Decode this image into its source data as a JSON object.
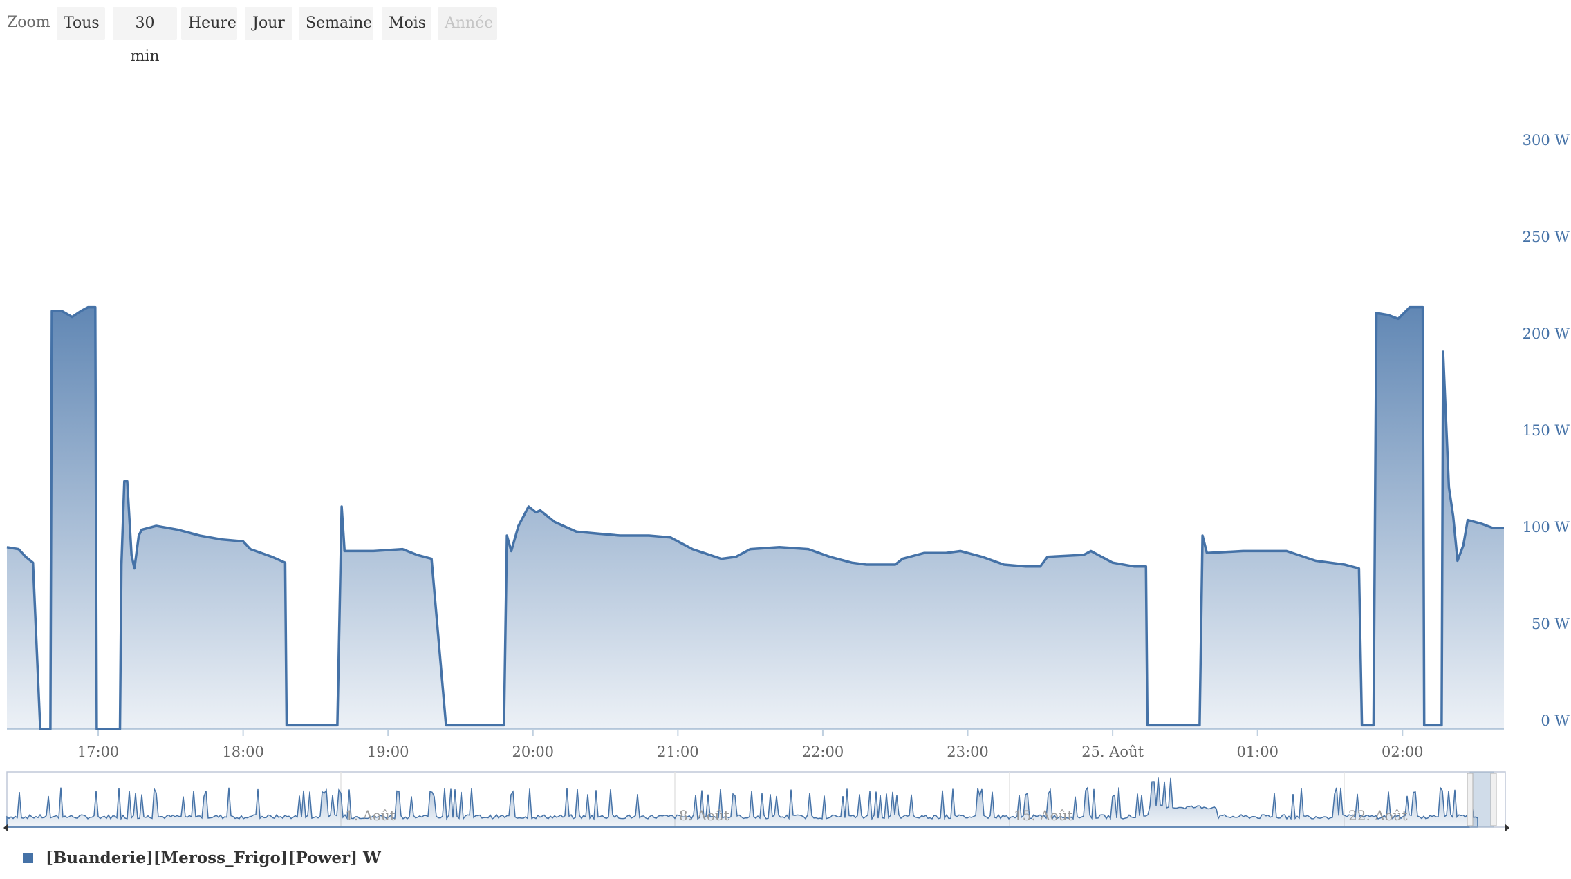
{
  "zoom": {
    "label": "Zoom",
    "buttons": [
      "Tous",
      "30 min",
      "Heure",
      "Jour",
      "Semaine",
      "Mois",
      "Année"
    ],
    "disabled": "Année"
  },
  "colors": {
    "series": "#4572a7",
    "axis_labels": "#4572a7",
    "grid_text": "#666666"
  },
  "chart_data": {
    "type": "area",
    "title": "",
    "series": [
      {
        "name": "[Buanderie][Meross_Frigo][Power] W",
        "unit": "W",
        "x_unit": "hours since 00:00 on 24 Aug (values past 24 are the next day)",
        "points": [
          [
            16.37,
            94
          ],
          [
            16.45,
            93
          ],
          [
            16.5,
            89
          ],
          [
            16.55,
            86
          ],
          [
            16.6,
            0
          ],
          [
            16.67,
            0
          ],
          [
            16.68,
            216
          ],
          [
            16.75,
            216
          ],
          [
            16.82,
            213
          ],
          [
            16.88,
            216
          ],
          [
            16.93,
            218
          ],
          [
            16.98,
            218
          ],
          [
            16.99,
            0
          ],
          [
            17.15,
            0
          ],
          [
            17.16,
            85
          ],
          [
            17.18,
            128
          ],
          [
            17.2,
            128
          ],
          [
            17.23,
            90
          ],
          [
            17.25,
            83
          ],
          [
            17.28,
            100
          ],
          [
            17.3,
            103
          ],
          [
            17.4,
            105
          ],
          [
            17.55,
            103
          ],
          [
            17.7,
            100
          ],
          [
            17.85,
            98
          ],
          [
            18.0,
            97
          ],
          [
            18.05,
            93
          ],
          [
            18.2,
            89
          ],
          [
            18.29,
            86
          ],
          [
            18.3,
            2
          ],
          [
            18.6,
            2
          ],
          [
            18.65,
            2
          ],
          [
            18.68,
            115
          ],
          [
            18.7,
            92
          ],
          [
            18.75,
            92
          ],
          [
            18.9,
            92
          ],
          [
            19.1,
            93
          ],
          [
            19.2,
            90
          ],
          [
            19.3,
            88
          ],
          [
            19.4,
            2
          ],
          [
            19.8,
            2
          ],
          [
            19.82,
            100
          ],
          [
            19.85,
            92
          ],
          [
            19.9,
            105
          ],
          [
            19.97,
            115
          ],
          [
            20.02,
            112
          ],
          [
            20.05,
            113
          ],
          [
            20.15,
            107
          ],
          [
            20.3,
            102
          ],
          [
            20.45,
            101
          ],
          [
            20.6,
            100
          ],
          [
            20.8,
            100
          ],
          [
            20.95,
            99
          ],
          [
            21.0,
            97
          ],
          [
            21.1,
            93
          ],
          [
            21.3,
            88
          ],
          [
            21.4,
            89
          ],
          [
            21.5,
            93
          ],
          [
            21.7,
            94
          ],
          [
            21.9,
            93
          ],
          [
            22.05,
            89
          ],
          [
            22.2,
            86
          ],
          [
            22.3,
            85
          ],
          [
            22.5,
            85
          ],
          [
            22.55,
            88
          ],
          [
            22.7,
            91
          ],
          [
            22.85,
            91
          ],
          [
            22.95,
            92
          ],
          [
            23.1,
            89
          ],
          [
            23.25,
            85
          ],
          [
            23.4,
            84
          ],
          [
            23.5,
            84
          ],
          [
            23.55,
            89
          ],
          [
            23.8,
            90
          ],
          [
            23.85,
            92
          ],
          [
            24.0,
            86
          ],
          [
            24.15,
            84
          ],
          [
            24.23,
            84
          ],
          [
            24.24,
            2
          ],
          [
            24.6,
            2
          ],
          [
            24.62,
            100
          ],
          [
            24.65,
            91
          ],
          [
            24.9,
            92
          ],
          [
            25.2,
            92
          ],
          [
            25.4,
            87
          ],
          [
            25.6,
            85
          ],
          [
            25.7,
            83
          ],
          [
            25.72,
            2
          ],
          [
            25.8,
            2
          ],
          [
            25.82,
            215
          ],
          [
            25.9,
            214
          ],
          [
            25.97,
            212
          ],
          [
            26.05,
            218
          ],
          [
            26.14,
            218
          ],
          [
            26.15,
            2
          ],
          [
            26.27,
            2
          ],
          [
            26.28,
            195
          ],
          [
            26.32,
            125
          ],
          [
            26.35,
            110
          ],
          [
            26.38,
            87
          ],
          [
            26.42,
            95
          ],
          [
            26.45,
            108
          ],
          [
            26.55,
            106
          ],
          [
            26.62,
            104
          ],
          [
            26.7,
            104
          ]
        ]
      }
    ],
    "x_ticks": [
      "17:00",
      "18:00",
      "19:00",
      "20:00",
      "21:00",
      "22:00",
      "23:00",
      "25. Août",
      "01:00",
      "02:00"
    ],
    "x_range": [
      16.37,
      26.7
    ],
    "y_ticks": [
      "0 W",
      "50 W",
      "100 W",
      "150 W",
      "200 W",
      "250 W",
      "300 W"
    ],
    "ylim": [
      0,
      300
    ],
    "navigator_ticks": [
      "1. Août",
      "8. Août",
      "15. Août",
      "22. Août"
    ]
  }
}
